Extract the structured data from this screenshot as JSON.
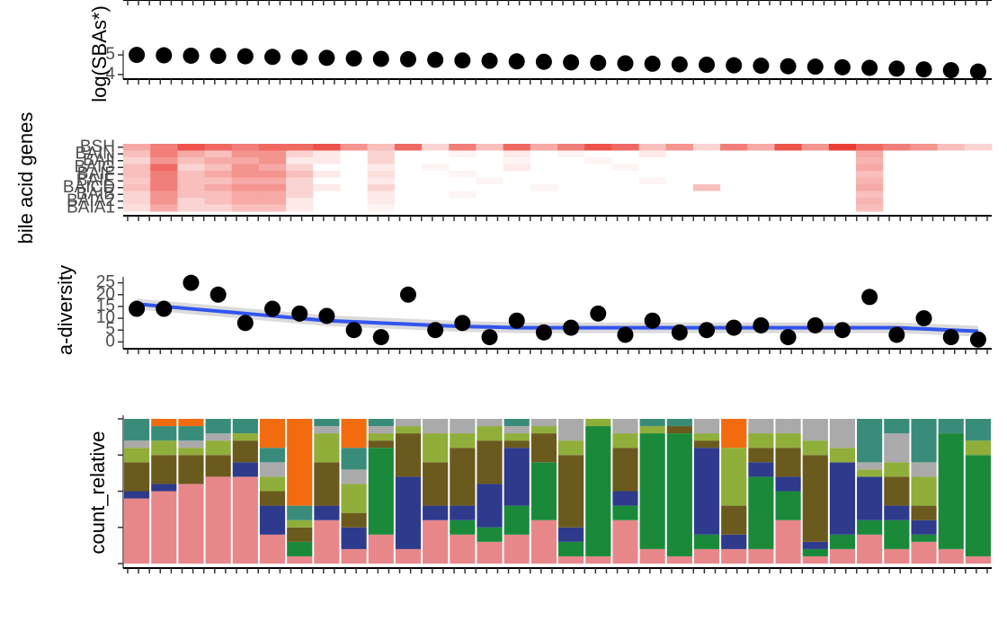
{
  "chart_data": [
    {
      "type": "scatter",
      "ylabel": "log(SBAs*)",
      "ylim": [
        3.95,
        5.05
      ],
      "yticks": [
        4,
        5
      ],
      "color": "#000000",
      "values": [
        5.0,
        4.98,
        4.96,
        4.95,
        4.93,
        4.9,
        4.88,
        4.85,
        4.82,
        4.8,
        4.78,
        4.75,
        4.72,
        4.7,
        4.67,
        4.65,
        4.62,
        4.6,
        4.57,
        4.55,
        4.52,
        4.5,
        4.47,
        4.45,
        4.42,
        4.4,
        4.37,
        4.34,
        4.3,
        4.26,
        4.22,
        4.15
      ]
    },
    {
      "type": "heatmap",
      "ylabel": "bile acid genes",
      "color": "#e8281e",
      "rows": [
        "BSH",
        "BAIN",
        "BAII",
        "BAIG",
        "BAIF",
        "BAIE",
        "BAICD",
        "BAIB",
        "BAIA2",
        "BAIA1"
      ],
      "values": [
        [
          0.4,
          0.6,
          0.8,
          0.7,
          0.6,
          0.7,
          0.7,
          0.8,
          0.5,
          0.3,
          0.7,
          0.2,
          0.6,
          0.3,
          0.7,
          0.4,
          0.6,
          0.8,
          0.7,
          0.3,
          0.5,
          0.2,
          0.6,
          0.4,
          0.8,
          0.5,
          0.9,
          0.7,
          0.6,
          0.5,
          0.3,
          0.2
        ],
        [
          0.3,
          0.6,
          0.4,
          0.3,
          0.5,
          0.5,
          0.2,
          0.1,
          0,
          0.2,
          0,
          0,
          0.05,
          0,
          0.1,
          0,
          0.05,
          0,
          0,
          0.1,
          0,
          0,
          0,
          0,
          0,
          0,
          0,
          0.4,
          0,
          0,
          0,
          0
        ],
        [
          0.2,
          0.5,
          0.3,
          0.4,
          0.4,
          0.5,
          0.1,
          0.1,
          0,
          0.2,
          0,
          0,
          0,
          0,
          0.05,
          0,
          0,
          0.05,
          0,
          0,
          0,
          0,
          0,
          0,
          0,
          0,
          0,
          0.35,
          0,
          0,
          0,
          0
        ],
        [
          0.3,
          0.7,
          0.2,
          0.3,
          0.5,
          0.4,
          0.2,
          0,
          0,
          0.1,
          0,
          0.05,
          0,
          0,
          0.1,
          0,
          0,
          0,
          0.05,
          0,
          0,
          0,
          0,
          0,
          0,
          0,
          0,
          0.4,
          0,
          0,
          0,
          0
        ],
        [
          0.3,
          0.6,
          0.3,
          0.4,
          0.5,
          0.5,
          0.3,
          0.1,
          0,
          0.15,
          0,
          0,
          0.05,
          0,
          0,
          0,
          0,
          0,
          0,
          0,
          0,
          0,
          0,
          0,
          0,
          0,
          0,
          0.3,
          0,
          0,
          0,
          0
        ],
        [
          0.25,
          0.6,
          0.3,
          0.3,
          0.4,
          0.4,
          0.2,
          0,
          0,
          0.1,
          0,
          0,
          0,
          0.05,
          0,
          0,
          0,
          0,
          0,
          0.05,
          0,
          0,
          0,
          0,
          0,
          0,
          0,
          0.35,
          0,
          0,
          0,
          0
        ],
        [
          0.3,
          0.6,
          0.3,
          0.4,
          0.5,
          0.5,
          0.2,
          0.1,
          0,
          0.2,
          0,
          0,
          0,
          0,
          0,
          0.05,
          0,
          0,
          0,
          0,
          0,
          0.3,
          0,
          0,
          0,
          0,
          0,
          0.4,
          0,
          0,
          0,
          0
        ],
        [
          0.2,
          0.5,
          0.3,
          0.3,
          0.4,
          0.4,
          0.2,
          0,
          0,
          0.1,
          0,
          0,
          0.05,
          0,
          0,
          0,
          0,
          0,
          0,
          0,
          0,
          0,
          0,
          0,
          0,
          0,
          0,
          0.3,
          0,
          0,
          0,
          0
        ],
        [
          0.2,
          0.5,
          0.2,
          0.3,
          0.4,
          0.4,
          0.1,
          0,
          0,
          0.1,
          0,
          0,
          0,
          0,
          0,
          0,
          0,
          0,
          0,
          0,
          0,
          0,
          0,
          0,
          0,
          0,
          0,
          0.35,
          0,
          0,
          0,
          0
        ],
        [
          0.15,
          0.4,
          0.2,
          0.2,
          0.3,
          0.3,
          0.1,
          0,
          0,
          0.05,
          0,
          0,
          0,
          0,
          0,
          0,
          0,
          0,
          0,
          0,
          0,
          0,
          0,
          0,
          0,
          0,
          0,
          0.3,
          0,
          0,
          0,
          0
        ]
      ]
    },
    {
      "type": "scatter",
      "ylabel": "a-diversity",
      "ylim": [
        -1,
        26
      ],
      "yticks": [
        0,
        5,
        10,
        15,
        20,
        25
      ],
      "color": "#000000",
      "fit_color": "#3355ee",
      "values": [
        14,
        14,
        25,
        20,
        8,
        14,
        12,
        11,
        5,
        2,
        20,
        5,
        8,
        2,
        9,
        4,
        6,
        12,
        3,
        9,
        4,
        5,
        6,
        7,
        2,
        7,
        5,
        19,
        3,
        10,
        2,
        1
      ],
      "fit": [
        16,
        15,
        14,
        13,
        12,
        11,
        10,
        9,
        8.5,
        8,
        7.5,
        7,
        6.5,
        6.3,
        6,
        6,
        6,
        6,
        6,
        6,
        6,
        6,
        6,
        6,
        6,
        6,
        6,
        6,
        6,
        5.5,
        5,
        4.5
      ]
    },
    {
      "type": "stacked_bar",
      "ylabel": "count_relative",
      "ylim": [
        0,
        1
      ],
      "yticks": [
        0,
        0.25,
        0.5,
        0.75,
        1
      ],
      "series": [
        {
          "color": "#e8878a",
          "values": [
            0.45,
            0.5,
            0.55,
            0.6,
            0.6,
            0.2,
            0.05,
            0.3,
            0.1,
            0.2,
            0.1,
            0.3,
            0.2,
            0.15,
            0.2,
            0.3,
            0.05,
            0.05,
            0.3,
            0.1,
            0.05,
            0.1,
            0.1,
            0.1,
            0.3,
            0.05,
            0.1,
            0.2,
            0.1,
            0.15,
            0.1,
            0.05
          ]
        },
        {
          "color": "#1a8a3a",
          "values": [
            0,
            0,
            0,
            0,
            0,
            0,
            0.1,
            0,
            0,
            0.6,
            0,
            0,
            0.1,
            0.1,
            0.2,
            0.4,
            0.1,
            0.9,
            0.1,
            0.8,
            0.85,
            0.1,
            0,
            0.5,
            0.2,
            0.05,
            0.1,
            0.1,
            0.2,
            0.05,
            0.8,
            0.7
          ]
        },
        {
          "color": "#2e3a8c",
          "values": [
            0.05,
            0.05,
            0,
            0,
            0.1,
            0.2,
            0,
            0.1,
            0.15,
            0,
            0.5,
            0.1,
            0.1,
            0.3,
            0.4,
            0,
            0.1,
            0,
            0.1,
            0,
            0,
            0.6,
            0.1,
            0.1,
            0.1,
            0.05,
            0.5,
            0.3,
            0.1,
            0.1,
            0,
            0
          ]
        },
        {
          "color": "#6b5a1e",
          "values": [
            0.2,
            0.2,
            0.2,
            0.15,
            0.15,
            0.1,
            0.1,
            0.3,
            0.1,
            0.05,
            0.3,
            0.3,
            0.4,
            0.3,
            0.05,
            0.2,
            0.5,
            0,
            0.3,
            0,
            0.05,
            0.05,
            0.2,
            0.1,
            0.2,
            0.6,
            0,
            0,
            0.2,
            0.1,
            0,
            0
          ]
        },
        {
          "color": "#8fae3a",
          "values": [
            0.1,
            0.1,
            0.05,
            0.1,
            0.05,
            0.1,
            0.05,
            0.2,
            0.2,
            0.05,
            0.05,
            0.2,
            0.1,
            0.1,
            0.05,
            0.05,
            0.1,
            0.05,
            0.1,
            0.05,
            0,
            0.05,
            0.4,
            0.1,
            0.1,
            0.1,
            0.1,
            0.05,
            0.1,
            0.2,
            0,
            0.1
          ]
        },
        {
          "color": "#aaaaaa",
          "values": [
            0.05,
            0,
            0.05,
            0.05,
            0,
            0.1,
            0,
            0.05,
            0.1,
            0.05,
            0.05,
            0.1,
            0.1,
            0.05,
            0.05,
            0.05,
            0.15,
            0,
            0.1,
            0,
            0,
            0.1,
            0,
            0.1,
            0.1,
            0.15,
            0.2,
            0.05,
            0.2,
            0.1,
            0,
            0
          ]
        },
        {
          "color": "#3a8c7a",
          "values": [
            0.15,
            0.1,
            0.1,
            0.1,
            0.1,
            0.1,
            0.1,
            0.05,
            0.15,
            0.05,
            0,
            0,
            0,
            0,
            0.05,
            0,
            0,
            0,
            0,
            0.05,
            0.05,
            0,
            0,
            0,
            0,
            0,
            0,
            0.3,
            0.1,
            0.3,
            0.1,
            0.15
          ]
        },
        {
          "color": "#f26b0f",
          "values": [
            0,
            0.05,
            0.05,
            0,
            0,
            0.2,
            0.6,
            0,
            0.2,
            0,
            0,
            0,
            0,
            0,
            0,
            0,
            0,
            0,
            0,
            0,
            0,
            0,
            0.2,
            0,
            0,
            0,
            0,
            0,
            0,
            0,
            0,
            0
          ]
        }
      ]
    }
  ]
}
